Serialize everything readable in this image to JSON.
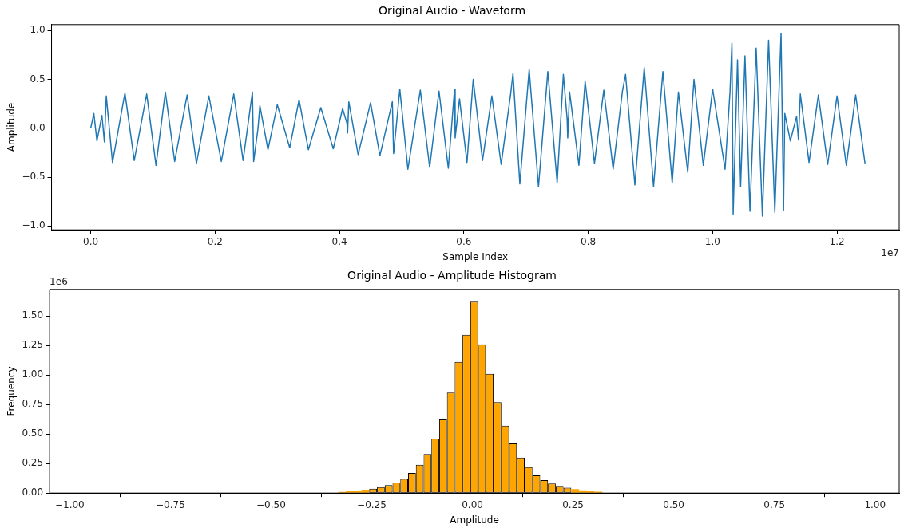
{
  "chart_data": [
    {
      "type": "line",
      "title": "Original Audio - Waveform",
      "xlabel": "Sample Index",
      "ylabel": "Amplitude",
      "color": "#1f77b4",
      "x": [
        0,
        0.005,
        0.01,
        0.018,
        0.022,
        0.025,
        0.035,
        0.055,
        0.07,
        0.09,
        0.105,
        0.12,
        0.135,
        0.155,
        0.17,
        0.19,
        0.21,
        0.23,
        0.245,
        0.26,
        0.262,
        0.269,
        0.272,
        0.285,
        0.3,
        0.32,
        0.335,
        0.35,
        0.37,
        0.39,
        0.405,
        0.412,
        0.413,
        0.415,
        0.43,
        0.45,
        0.465,
        0.485,
        0.487,
        0.491,
        0.497,
        0.51,
        0.53,
        0.545,
        0.56,
        0.575,
        0.585,
        0.586,
        0.593,
        0.605,
        0.615,
        0.63,
        0.645,
        0.66,
        0.675,
        0.679,
        0.69,
        0.705,
        0.72,
        0.735,
        0.75,
        0.76,
        0.766,
        0.767,
        0.77,
        0.785,
        0.795,
        0.81,
        0.825,
        0.84,
        0.855,
        0.86,
        0.875,
        0.89,
        0.905,
        0.92,
        0.935,
        0.942,
        0.945,
        0.96,
        0.97,
        0.985,
        1.0,
        1.02,
        1.028,
        1.031,
        1.033,
        1.04,
        1.045,
        1.052,
        1.06,
        1.07,
        1.08,
        1.09,
        1.1,
        1.11,
        1.114,
        1.116,
        1.125,
        1.135,
        1.138,
        1.141,
        1.155,
        1.17,
        1.185,
        1.2,
        1.215,
        1.23,
        1.245
      ],
      "values": [
        0,
        0.15,
        -0.13,
        0.13,
        -0.14,
        0.33,
        -0.35,
        0.36,
        -0.33,
        0.35,
        -0.38,
        0.37,
        -0.34,
        0.34,
        -0.36,
        0.33,
        -0.34,
        0.35,
        -0.33,
        0.37,
        -0.34,
        0,
        0.23,
        -0.22,
        0.24,
        -0.2,
        0.29,
        -0.22,
        0.21,
        -0.21,
        0.2,
        0.05,
        -0.05,
        0.27,
        -0.27,
        0.26,
        -0.28,
        0.27,
        -0.26,
        0,
        0.4,
        -0.42,
        0.39,
        -0.4,
        0.38,
        -0.41,
        0.4,
        -0.1,
        0.3,
        -0.35,
        0.5,
        -0.33,
        0.33,
        -0.37,
        0.34,
        0.56,
        -0.57,
        0.6,
        -0.6,
        0.58,
        -0.56,
        0.55,
        0.1,
        -0.1,
        0.37,
        -0.38,
        0.48,
        -0.36,
        0.39,
        -0.42,
        0.38,
        0.55,
        -0.58,
        0.62,
        -0.6,
        0.58,
        -0.56,
        0.1,
        0.37,
        -0.45,
        0.5,
        -0.38,
        0.4,
        -0.42,
        0.38,
        0.87,
        -0.88,
        0.7,
        -0.6,
        0.74,
        -0.85,
        0.82,
        -0.9,
        0.9,
        -0.86,
        0.97,
        -0.84,
        0.15,
        -0.13,
        0.12,
        -0.12,
        0.35,
        -0.35,
        0.34,
        -0.37,
        0.33,
        -0.38,
        0.34,
        -0.36
      ],
      "xlim": [
        -0.063,
        1.3
      ],
      "ylim": [
        -1.04,
        1.06
      ],
      "xticks": [
        {
          "value": 0,
          "label": "0.0"
        },
        0.2,
        0.4,
        0.6,
        0.8,
        {
          "value": 1,
          "label": "1.0"
        },
        1.2
      ],
      "yticks": [
        {
          "value": -1,
          "label": "−1.0"
        },
        {
          "value": -0.5,
          "label": "−0.5"
        },
        {
          "value": 0,
          "label": "0.0"
        },
        0.5,
        {
          "value": 1,
          "label": "1.0"
        }
      ],
      "annotations": [
        "1e7"
      ]
    },
    {
      "type": "histogram",
      "title": "Original Audio - Amplitude Histogram",
      "xlabel": "Amplitude",
      "ylabel": "Frequency",
      "color": "#ffa500",
      "bins": [
        -0.9317,
        -0.9124,
        -0.8931,
        -0.8738,
        -0.8545,
        -0.8352,
        -0.8159,
        -0.7966,
        -0.7773,
        -0.758,
        -0.7387,
        -0.7194,
        -0.7001,
        -0.6808,
        -0.6615,
        -0.6422,
        -0.6229,
        -0.6036,
        -0.5843,
        -0.565,
        -0.5457,
        -0.5264,
        -0.5071,
        -0.4878,
        -0.4685,
        -0.4492,
        -0.4299,
        -0.4106,
        -0.3913,
        -0.372,
        -0.3527,
        -0.3334,
        -0.3141,
        -0.2948,
        -0.2755,
        -0.2562,
        -0.2369,
        -0.2176,
        -0.1983,
        -0.179,
        -0.1597,
        -0.1404,
        -0.1211,
        -0.1018,
        -0.0825,
        -0.0632,
        -0.0439,
        -0.0246,
        -0.0053,
        0.014,
        0.0333,
        0.0526,
        0.0719,
        0.0912,
        0.1105,
        0.1298,
        0.1491,
        0.1684,
        0.1877,
        0.207,
        0.2263,
        0.2456,
        0.2649,
        0.2842,
        0.3035,
        0.3228,
        0.3421,
        0.3614,
        0.3807,
        0.4,
        0.4193,
        0.4386,
        0.4579,
        0.4772,
        0.4965,
        0.5158,
        0.5351,
        0.5544,
        0.5737,
        0.593,
        0.6123,
        0.6316,
        0.6509,
        0.6702,
        0.6895,
        0.7088,
        0.7281,
        0.7474,
        0.7667,
        0.786,
        0.8053,
        0.8246,
        0.8439,
        0.8632,
        0.8825,
        0.9018,
        0.9211,
        0.9404,
        0.9597,
        0.979
      ],
      "values": [
        0,
        0,
        0,
        0,
        0,
        0,
        0,
        0,
        0,
        0,
        0,
        0,
        0,
        0,
        0,
        0,
        0,
        0,
        0,
        0,
        0,
        0,
        0,
        0,
        0,
        0,
        0,
        0,
        0,
        0,
        0,
        0.01,
        0.015,
        0.022,
        0.028,
        0.037,
        0.05,
        0.067,
        0.09,
        0.12,
        0.17,
        0.24,
        0.33,
        0.46,
        0.63,
        0.85,
        1.11,
        1.34,
        1.62,
        1.26,
        1.01,
        0.77,
        0.57,
        0.42,
        0.3,
        0.22,
        0.15,
        0.11,
        0.08,
        0.06,
        0.045,
        0.033,
        0.024,
        0.017,
        0.012,
        0,
        0,
        0,
        0,
        0,
        0,
        0,
        0,
        0,
        0,
        0,
        0,
        0,
        0,
        0,
        0,
        0,
        0,
        0,
        0,
        0,
        0,
        0,
        0,
        0,
        0,
        0,
        0,
        0,
        0,
        0,
        0,
        0,
        0
      ],
      "xlim": [
        -1.05,
        1.06
      ],
      "ylim": [
        0,
        1.725
      ],
      "xticks": [
        {
          "value": -1,
          "label": "−1.00"
        },
        {
          "value": -0.75,
          "label": "−0.75"
        },
        {
          "value": -0.5,
          "label": "−0.50"
        },
        {
          "value": -0.25,
          "label": "−0.25"
        },
        {
          "value": 0,
          "label": "0.00"
        },
        0.25,
        {
          "value": 0.5,
          "label": "0.50"
        },
        0.75,
        {
          "value": 1,
          "label": "1.00"
        }
      ],
      "yticks": [
        {
          "value": 0,
          "label": "0.00"
        },
        0.25,
        {
          "value": 0.5,
          "label": "0.50"
        },
        0.75,
        {
          "value": 1,
          "label": "1.00"
        },
        1.25,
        {
          "value": 1.5,
          "label": "1.50"
        }
      ],
      "annotations": [
        "1e6"
      ]
    }
  ]
}
